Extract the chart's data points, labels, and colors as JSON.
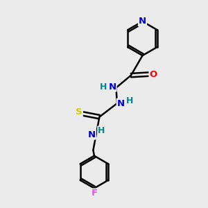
{
  "background_color": "#ebebeb",
  "bond_color": "#000000",
  "atom_colors": {
    "N": "#0000cc",
    "O": "#ff0000",
    "S": "#cccc00",
    "F": "#ff44ff",
    "H": "#008888",
    "C": "#000000"
  },
  "line_width": 1.8,
  "figsize": [
    3.0,
    3.0
  ],
  "dpi": 100
}
